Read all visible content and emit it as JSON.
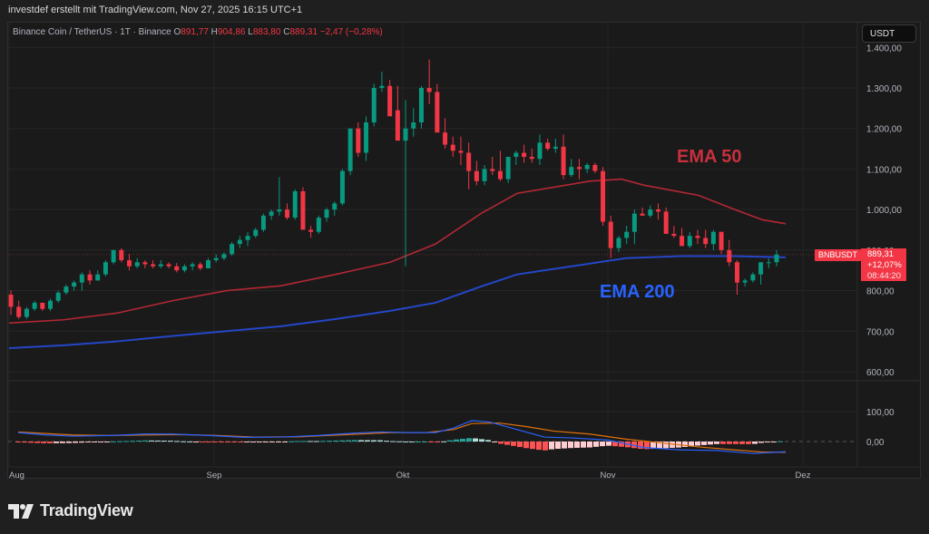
{
  "caption": "investdef erstellt mit TradingView.com, Nov 27, 2025 16:15 UTC+1",
  "legend": {
    "symbol_title": "Binance Coin / TetherUS · 1T · Binance",
    "open_label": "O",
    "open": "891,77",
    "high_label": "H",
    "high": "904,86",
    "low_label": "L",
    "low": "883,80",
    "close_label": "C",
    "close": "889,31",
    "change": "−2,47 (−0,28%)"
  },
  "currency_button": "USDT",
  "price_badge": {
    "symbol": "BNBUSDT",
    "price": "889,31",
    "change_pct": "+12,07%",
    "countdown": "08:44:20",
    "color": "#f23645"
  },
  "annotations": {
    "ema50": {
      "text": "EMA 50",
      "color": "#c9303e"
    },
    "ema200": {
      "text": "EMA 200",
      "color": "#2962ff"
    }
  },
  "price_axis": [
    "1.400,00",
    "1.300,00",
    "1.200,00",
    "1.100,00",
    "1.000,00",
    "900,00",
    "800,00",
    "700,00",
    "600,00"
  ],
  "macd_axis": [
    "100,00",
    "0,00"
  ],
  "time_axis": [
    "Aug",
    "Sep",
    "Okt",
    "Nov",
    "Dez"
  ],
  "logo_text": "TradingView",
  "colors": {
    "up": "#089981",
    "down": "#f23645",
    "ema50": "#b22833",
    "ema200": "#2447c9",
    "macd": "#2962ff",
    "signal": "#e0710a"
  },
  "chart_data": {
    "type": "candlestick",
    "title": "Binance Coin / TetherUS · 1T · Binance",
    "xlabel": "",
    "ylabel": "USDT",
    "ylim": [
      580,
      1420
    ],
    "x_ticks": [
      "Aug",
      "Sep",
      "Okt",
      "Nov",
      "Dez"
    ],
    "candles": [
      [
        790,
        800,
        740,
        760
      ],
      [
        760,
        775,
        730,
        735
      ],
      [
        735,
        760,
        730,
        755
      ],
      [
        755,
        775,
        750,
        770
      ],
      [
        770,
        770,
        750,
        755
      ],
      [
        755,
        780,
        750,
        775
      ],
      [
        775,
        800,
        770,
        795
      ],
      [
        795,
        815,
        790,
        810
      ],
      [
        810,
        825,
        800,
        820
      ],
      [
        820,
        845,
        800,
        840
      ],
      [
        840,
        850,
        815,
        825
      ],
      [
        825,
        850,
        825,
        840
      ],
      [
        840,
        875,
        835,
        870
      ],
      [
        870,
        900,
        865,
        900
      ],
      [
        900,
        905,
        870,
        875
      ],
      [
        875,
        890,
        850,
        860
      ],
      [
        860,
        880,
        855,
        870
      ],
      [
        870,
        875,
        855,
        865
      ],
      [
        865,
        875,
        855,
        860
      ],
      [
        860,
        875,
        855,
        865
      ],
      [
        865,
        870,
        855,
        860
      ],
      [
        860,
        868,
        845,
        850
      ],
      [
        850,
        865,
        845,
        860
      ],
      [
        860,
        870,
        850,
        865
      ],
      [
        865,
        870,
        850,
        855
      ],
      [
        855,
        880,
        855,
        875
      ],
      [
        875,
        890,
        870,
        880
      ],
      [
        880,
        895,
        875,
        890
      ],
      [
        890,
        920,
        885,
        915
      ],
      [
        915,
        935,
        905,
        925
      ],
      [
        925,
        945,
        910,
        935
      ],
      [
        935,
        955,
        930,
        950
      ],
      [
        950,
        990,
        945,
        985
      ],
      [
        985,
        1000,
        975,
        995
      ],
      [
        995,
        1080,
        985,
        1000
      ],
      [
        1000,
        1015,
        975,
        980
      ],
      [
        980,
        1050,
        975,
        1045
      ],
      [
        1045,
        1055,
        955,
        950
      ],
      [
        950,
        960,
        930,
        945
      ],
      [
        945,
        985,
        940,
        980
      ],
      [
        980,
        1005,
        970,
        1000
      ],
      [
        1000,
        1020,
        985,
        1015
      ],
      [
        1015,
        1100,
        1010,
        1095
      ],
      [
        1095,
        1200,
        1085,
        1200
      ],
      [
        1200,
        1215,
        1130,
        1140
      ],
      [
        1140,
        1230,
        1120,
        1215
      ],
      [
        1215,
        1310,
        1205,
        1300
      ],
      [
        1300,
        1340,
        1290,
        1305
      ],
      [
        1305,
        1320,
        1245,
        1230
      ],
      [
        1245,
        1305,
        1190,
        1170
      ],
      [
        1170,
        1270,
        860,
        1200
      ],
      [
        1200,
        1250,
        1180,
        1215
      ],
      [
        1215,
        1305,
        1200,
        1300
      ],
      [
        1300,
        1370,
        1260,
        1290
      ],
      [
        1290,
        1310,
        1200,
        1190
      ],
      [
        1190,
        1225,
        1150,
        1160
      ],
      [
        1160,
        1180,
        1130,
        1145
      ],
      [
        1145,
        1180,
        1110,
        1140
      ],
      [
        1140,
        1165,
        1050,
        1095
      ],
      [
        1095,
        1120,
        1060,
        1070
      ],
      [
        1070,
        1110,
        1060,
        1100
      ],
      [
        1100,
        1130,
        1085,
        1095
      ],
      [
        1095,
        1145,
        1070,
        1075
      ],
      [
        1075,
        1120,
        1065,
        1130
      ],
      [
        1130,
        1145,
        1110,
        1140
      ],
      [
        1140,
        1160,
        1115,
        1130
      ],
      [
        1130,
        1150,
        1115,
        1125
      ],
      [
        1125,
        1185,
        1110,
        1165
      ],
      [
        1165,
        1175,
        1145,
        1150
      ],
      [
        1150,
        1175,
        1140,
        1155
      ],
      [
        1155,
        1185,
        1075,
        1085
      ],
      [
        1085,
        1125,
        1080,
        1105
      ],
      [
        1105,
        1125,
        1075,
        1100
      ],
      [
        1100,
        1115,
        1090,
        1110
      ],
      [
        1110,
        1115,
        1090,
        1095
      ],
      [
        1095,
        1105,
        960,
        970
      ],
      [
        970,
        985,
        880,
        905
      ],
      [
        905,
        935,
        895,
        930
      ],
      [
        930,
        960,
        915,
        945
      ],
      [
        945,
        1000,
        915,
        990
      ],
      [
        990,
        1005,
        985,
        985
      ],
      [
        985,
        1010,
        980,
        1000
      ],
      [
        1000,
        1015,
        975,
        995
      ],
      [
        995,
        1005,
        945,
        940
      ],
      [
        940,
        960,
        930,
        935
      ],
      [
        935,
        955,
        910,
        910
      ],
      [
        910,
        945,
        905,
        935
      ],
      [
        935,
        950,
        915,
        930
      ],
      [
        930,
        950,
        905,
        915
      ],
      [
        915,
        950,
        900,
        945
      ],
      [
        945,
        945,
        890,
        900
      ],
      [
        900,
        925,
        860,
        870
      ],
      [
        870,
        875,
        790,
        820
      ],
      [
        820,
        830,
        810,
        825
      ],
      [
        825,
        845,
        820,
        840
      ],
      [
        840,
        860,
        815,
        870
      ],
      [
        870,
        880,
        855,
        870
      ],
      [
        870,
        900,
        860,
        889
      ]
    ],
    "ema50": [
      [
        0,
        720
      ],
      [
        60,
        728
      ],
      [
        120,
        745
      ],
      [
        180,
        775
      ],
      [
        240,
        800
      ],
      [
        300,
        812
      ],
      [
        360,
        840
      ],
      [
        420,
        870
      ],
      [
        470,
        915
      ],
      [
        520,
        990
      ],
      [
        560,
        1040
      ],
      [
        600,
        1055
      ],
      [
        640,
        1070
      ],
      [
        675,
        1075
      ],
      [
        700,
        1060
      ],
      [
        760,
        1035
      ],
      [
        800,
        1000
      ],
      [
        830,
        975
      ],
      [
        856,
        965
      ]
    ],
    "ema200": [
      [
        0,
        658
      ],
      [
        60,
        665
      ],
      [
        120,
        675
      ],
      [
        180,
        688
      ],
      [
        240,
        700
      ],
      [
        300,
        712
      ],
      [
        360,
        730
      ],
      [
        420,
        750
      ],
      [
        470,
        770
      ],
      [
        520,
        810
      ],
      [
        560,
        840
      ],
      [
        620,
        860
      ],
      [
        680,
        880
      ],
      [
        740,
        885
      ],
      [
        800,
        885
      ],
      [
        856,
        882
      ]
    ],
    "macd_pane": {
      "ylim": [
        -60,
        120
      ],
      "macd": [
        [
          10,
          30
        ],
        [
          40,
          22
        ],
        [
          70,
          18
        ],
        [
          110,
          20
        ],
        [
          150,
          25
        ],
        [
          180,
          25
        ],
        [
          220,
          20
        ],
        [
          260,
          14
        ],
        [
          300,
          15
        ],
        [
          340,
          20
        ],
        [
          380,
          28
        ],
        [
          410,
          32
        ],
        [
          440,
          30
        ],
        [
          470,
          30
        ],
        [
          490,
          45
        ],
        [
          510,
          70
        ],
        [
          530,
          65
        ],
        [
          560,
          40
        ],
        [
          590,
          15
        ],
        [
          620,
          12
        ],
        [
          660,
          5
        ],
        [
          700,
          -20
        ],
        [
          740,
          -28
        ],
        [
          780,
          -30
        ],
        [
          820,
          -40
        ],
        [
          856,
          -34
        ]
      ],
      "signal": [
        [
          10,
          32
        ],
        [
          70,
          22
        ],
        [
          110,
          20
        ],
        [
          150,
          22
        ],
        [
          190,
          23
        ],
        [
          230,
          20
        ],
        [
          270,
          15
        ],
        [
          320,
          16
        ],
        [
          380,
          24
        ],
        [
          420,
          30
        ],
        [
          460,
          30
        ],
        [
          490,
          40
        ],
        [
          510,
          60
        ],
        [
          540,
          62
        ],
        [
          570,
          50
        ],
        [
          600,
          35
        ],
        [
          640,
          25
        ],
        [
          680,
          8
        ],
        [
          720,
          -5
        ],
        [
          760,
          -18
        ],
        [
          800,
          -28
        ],
        [
          830,
          -35
        ],
        [
          856,
          -36
        ]
      ]
    }
  }
}
